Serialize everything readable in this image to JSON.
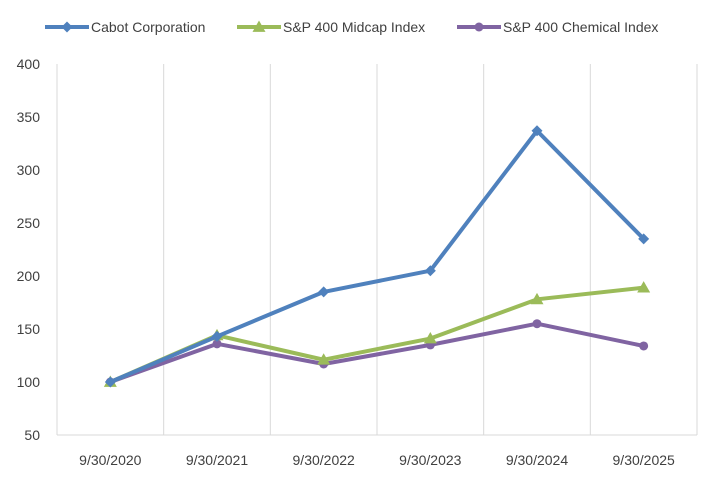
{
  "chart_data": {
    "type": "line",
    "title": "",
    "xlabel": "",
    "ylabel": "",
    "categories": [
      "9/30/2020",
      "9/30/2021",
      "9/30/2022",
      "9/30/2023",
      "9/30/2024",
      "9/30/2025"
    ],
    "ylim": [
      50,
      400
    ],
    "yticks": [
      50,
      100,
      150,
      200,
      250,
      300,
      350,
      400
    ],
    "grid": "vertical",
    "legend_position": "top",
    "series": [
      {
        "name": "Cabot Corporation",
        "color": "#4F81BD",
        "marker": "diamond",
        "values": [
          100,
          143,
          185,
          205,
          337,
          235
        ]
      },
      {
        "name": "S&P 400 Midcap Index",
        "color": "#9BBB59",
        "marker": "triangle",
        "values": [
          100,
          144,
          121,
          141,
          178,
          189
        ]
      },
      {
        "name": "S&P 400 Chemical Index",
        "color": "#8064A2",
        "marker": "circle",
        "values": [
          100,
          136,
          117,
          135,
          155,
          134
        ]
      }
    ]
  }
}
